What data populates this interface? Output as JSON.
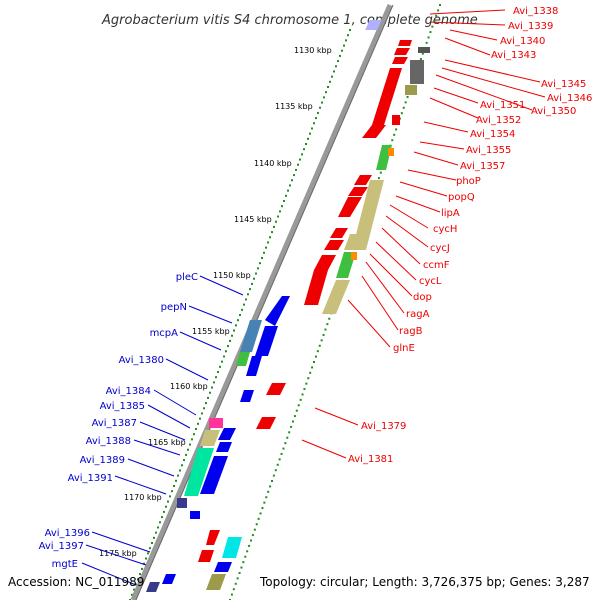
{
  "title": "Agrobacterium vitis S4 chromosome 1, complete genome",
  "accession": "Accession: NC_011989",
  "topology": "Topology: circular; Length: 3,726,375 bp; Genes: 3,287",
  "kbp_labels": [
    "1130 kbp",
    "1135 kbp",
    "1140 kbp",
    "1145 kbp",
    "1150 kbp",
    "1155 kbp",
    "1160 kbp",
    "1165 kbp",
    "1170 kbp",
    "1175 kbp"
  ],
  "right_labels": [
    "Avi_1338",
    "Avi_1339",
    "Avi_1340",
    "Avi_1343",
    "Avi_1345",
    "Avi_1346",
    "Avi_1350",
    "Avi_1351",
    "Avi_1352",
    "Avi_1354",
    "Avi_1355",
    "Avi_1357",
    "phoP",
    "popQ",
    "lipA",
    "cycH",
    "cycJ",
    "ccmF",
    "cycL",
    "dop",
    "ragA",
    "ragB",
    "glnE",
    "Avi_1379",
    "Avi_1381"
  ],
  "left_labels": [
    "pleC",
    "pepN",
    "mcpA",
    "Avi_1380",
    "Avi_1384",
    "Avi_1385",
    "Avi_1387",
    "Avi_1388",
    "Avi_1389",
    "Avi_1391",
    "Avi_1396",
    "Avi_1397",
    "mgtE"
  ],
  "colors": {
    "forward_cds": "#ee0000",
    "reverse_cds": "#0000ee",
    "right_label": "#ee0000",
    "left_label": "#0000cc",
    "backbone": "#888888",
    "kbp_ticks": "#228b22"
  }
}
